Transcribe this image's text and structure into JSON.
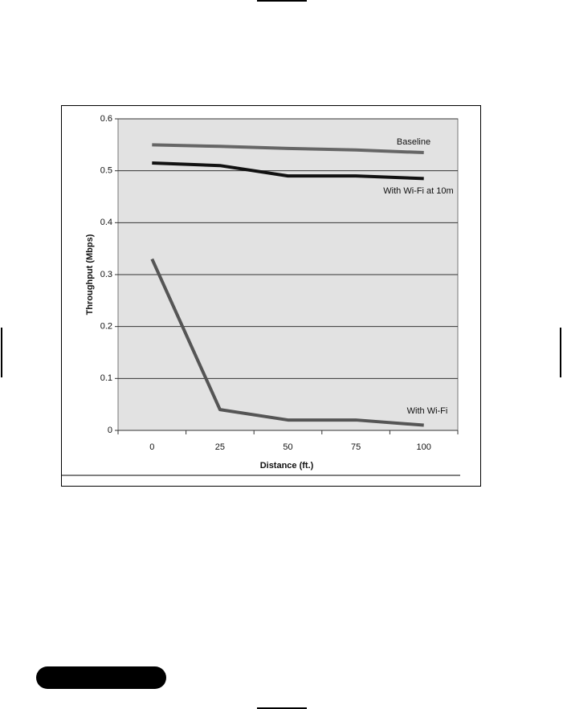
{
  "chart_data": {
    "type": "line",
    "x_label": "Distance (ft.)",
    "y_label": "Throughput (Mbps)",
    "categories": [
      "0",
      "25",
      "50",
      "75",
      "100"
    ],
    "series": [
      {
        "name": "Baseline",
        "color": "#666666",
        "values": [
          0.55,
          0.547,
          0.543,
          0.54,
          0.535
        ]
      },
      {
        "name": "With Wi-Fi at 10m",
        "color": "#111111",
        "values": [
          0.515,
          0.51,
          0.49,
          0.49,
          0.485
        ]
      },
      {
        "name": "With Wi-Fi",
        "color": "#555555",
        "values": [
          0.33,
          0.04,
          0.02,
          0.02,
          0.01
        ]
      }
    ],
    "ylim": [
      0,
      0.6
    ],
    "yticks": [
      0,
      0.1,
      0.2,
      0.3,
      0.4,
      0.5,
      0.6
    ],
    "grid": true
  }
}
